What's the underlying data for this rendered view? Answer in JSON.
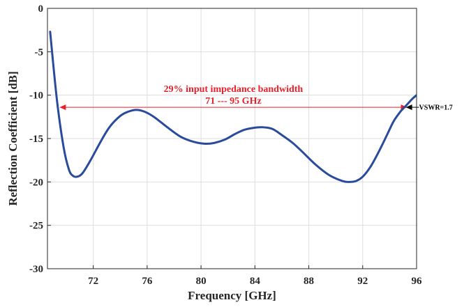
{
  "chart_data": {
    "type": "line",
    "title": "",
    "xlabel": "Frequency [GHz]",
    "ylabel": "Reflection Coefficient [dB]",
    "xlim": [
      68.6,
      96
    ],
    "ylim": [
      -30,
      0
    ],
    "x_ticks": [
      72,
      76,
      80,
      84,
      88,
      92,
      96
    ],
    "y_ticks": [
      0,
      -5,
      -10,
      -15,
      -20,
      -25,
      -30
    ],
    "grid": true,
    "series": [
      {
        "color": "#2a4b9b",
        "x": [
          68.8,
          69.3,
          69.8,
          70.2,
          70.5,
          70.8,
          71.2,
          71.8,
          72.5,
          73.2,
          74.0,
          74.6,
          75.2,
          75.8,
          76.5,
          77.5,
          78.5,
          79.5,
          80.3,
          81.0,
          81.8,
          82.5,
          83.2,
          84.0,
          84.6,
          85.3,
          86.0,
          86.8,
          87.5,
          88.5,
          89.5,
          90.5,
          91.0,
          91.5,
          92.0,
          92.6,
          93.2,
          93.8,
          94.3,
          94.8,
          95.1,
          95.4,
          95.7,
          96.0
        ],
        "y": [
          -2.7,
          -10.5,
          -16.0,
          -18.6,
          -19.3,
          -19.4,
          -19.0,
          -17.5,
          -15.5,
          -13.7,
          -12.4,
          -11.9,
          -11.7,
          -11.9,
          -12.5,
          -13.7,
          -14.8,
          -15.4,
          -15.6,
          -15.5,
          -15.1,
          -14.5,
          -14.0,
          -13.75,
          -13.7,
          -13.9,
          -14.6,
          -15.5,
          -16.5,
          -18.0,
          -19.2,
          -19.9,
          -20.0,
          -19.9,
          -19.4,
          -18.2,
          -16.5,
          -14.6,
          -13.0,
          -11.9,
          -11.4,
          -10.9,
          -10.4,
          -10.0
        ]
      }
    ],
    "annotations": {
      "bandwidth_line1": "29% input impedance bandwidth",
      "bandwidth_line2": "71 --- 95 GHz",
      "bandwidth_x": [
        69.5,
        95.3
      ],
      "bandwidth_y": -11.4,
      "bandwidth_color": "#e8202a",
      "vswr_label": "VSWR=1.7",
      "vswr_point": [
        95.2,
        -11.4
      ]
    }
  }
}
